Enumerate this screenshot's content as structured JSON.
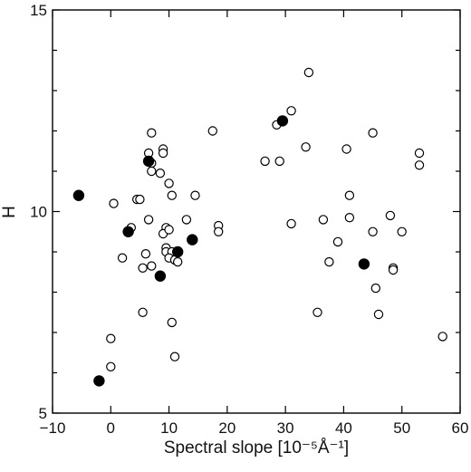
{
  "chart_data": {
    "type": "scatter",
    "title": "",
    "xlabel": "Spectral slope [10⁻⁵Å⁻¹]",
    "ylabel": "H",
    "xlim": [
      -10,
      60
    ],
    "ylim": [
      5,
      15
    ],
    "xticks": [
      -10,
      0,
      10,
      20,
      30,
      40,
      50,
      60
    ],
    "yticks": [
      5,
      10,
      15
    ],
    "grid": false,
    "legend": "none",
    "series": [
      {
        "marker": "open-circle",
        "color": "#000000",
        "points": [
          [
            7,
            11.95
          ],
          [
            9,
            11.55
          ],
          [
            6.5,
            11.45
          ],
          [
            9,
            11.45
          ],
          [
            7,
            11.2
          ],
          [
            7,
            11.0
          ],
          [
            8.5,
            10.95
          ],
          [
            10,
            10.7
          ],
          [
            10.5,
            10.4
          ],
          [
            14.5,
            10.4
          ],
          [
            17.5,
            12.0
          ],
          [
            4.5,
            10.3
          ],
          [
            5,
            10.3
          ],
          [
            0.5,
            10.2
          ],
          [
            3.5,
            9.6
          ],
          [
            6.5,
            9.8
          ],
          [
            9.5,
            9.6
          ],
          [
            9,
            9.45
          ],
          [
            10,
            9.55
          ],
          [
            13,
            9.8
          ],
          [
            18.5,
            9.65
          ],
          [
            18.5,
            9.5
          ],
          [
            2,
            8.85
          ],
          [
            6,
            8.95
          ],
          [
            7,
            8.65
          ],
          [
            5.5,
            8.6
          ],
          [
            9.5,
            9.1
          ],
          [
            9.5,
            9.0
          ],
          [
            10.5,
            9.0
          ],
          [
            10,
            8.85
          ],
          [
            11,
            8.8
          ],
          [
            11.5,
            8.75
          ],
          [
            5.5,
            7.5
          ],
          [
            10.5,
            7.25
          ],
          [
            0,
            6.85
          ],
          [
            0,
            6.15
          ],
          [
            11,
            6.4
          ],
          [
            28.5,
            12.15
          ],
          [
            31,
            12.5
          ],
          [
            34,
            13.45
          ],
          [
            26.5,
            11.25
          ],
          [
            29,
            11.25
          ],
          [
            33.5,
            11.6
          ],
          [
            40.5,
            11.55
          ],
          [
            45,
            11.95
          ],
          [
            53,
            11.45
          ],
          [
            53,
            11.15
          ],
          [
            41,
            10.4
          ],
          [
            36.5,
            9.8
          ],
          [
            41,
            9.85
          ],
          [
            31,
            9.7
          ],
          [
            48,
            9.9
          ],
          [
            50,
            9.5
          ],
          [
            45,
            9.5
          ],
          [
            39,
            9.25
          ],
          [
            37.5,
            8.75
          ],
          [
            48.5,
            8.6
          ],
          [
            48.5,
            8.55
          ],
          [
            45.5,
            8.1
          ],
          [
            35.5,
            7.5
          ],
          [
            46,
            7.45
          ],
          [
            57,
            6.9
          ]
        ]
      },
      {
        "marker": "filled-circle",
        "color": "#000000",
        "points": [
          [
            -5.5,
            10.4
          ],
          [
            6.5,
            11.25
          ],
          [
            3,
            9.5
          ],
          [
            14,
            9.3
          ],
          [
            11.5,
            9.0
          ],
          [
            8.5,
            8.4
          ],
          [
            29.5,
            12.25
          ],
          [
            43.5,
            8.7
          ],
          [
            -2,
            5.8
          ]
        ]
      }
    ]
  }
}
